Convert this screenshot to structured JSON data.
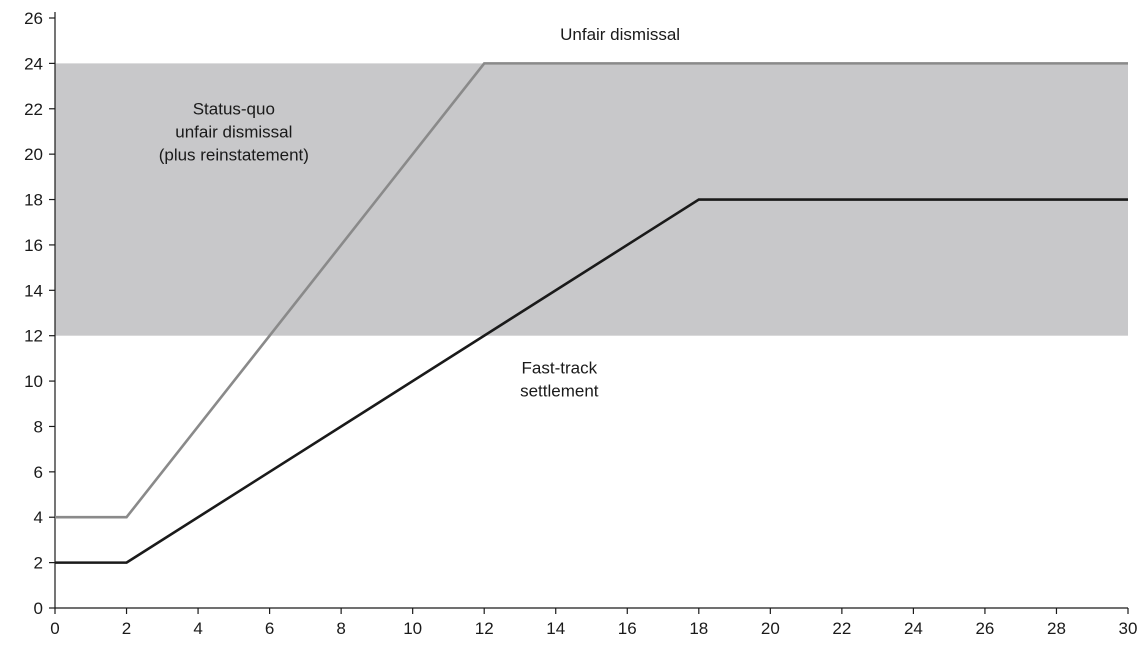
{
  "chart_data": {
    "type": "line",
    "title": "",
    "xlabel": "",
    "ylabel": "",
    "xlim": [
      0,
      30
    ],
    "ylim": [
      0,
      26
    ],
    "x_ticks": [
      0,
      2,
      4,
      6,
      8,
      10,
      12,
      14,
      16,
      18,
      20,
      22,
      24,
      26,
      28,
      30
    ],
    "y_ticks": [
      0,
      2,
      4,
      6,
      8,
      10,
      12,
      14,
      16,
      18,
      20,
      22,
      24,
      26
    ],
    "grid": false,
    "shaded_band": {
      "x_range": [
        0,
        30
      ],
      "y_range": [
        12,
        24
      ],
      "color": "#c8c8ca",
      "label_lines": [
        "Status-quo",
        "unfair dismissal",
        "(plus reinstatement)"
      ],
      "label_anchor": {
        "x": 5,
        "y": 21
      }
    },
    "series": [
      {
        "name": "Unfair dismissal",
        "color": "#8a8a8a",
        "points": [
          [
            0,
            4
          ],
          [
            2,
            4
          ],
          [
            12,
            24
          ],
          [
            30,
            24
          ]
        ],
        "label_lines": [
          "Unfair dismissal"
        ],
        "label_anchor": {
          "x": 15.8,
          "y": 25.3
        }
      },
      {
        "name": "Fast-track settlement",
        "color": "#1a1a1a",
        "points": [
          [
            0,
            2
          ],
          [
            2,
            2
          ],
          [
            18,
            18
          ],
          [
            30,
            18
          ]
        ],
        "label_lines": [
          "Fast-track",
          "settlement"
        ],
        "label_anchor": {
          "x": 14.1,
          "y": 10.1
        }
      }
    ]
  }
}
